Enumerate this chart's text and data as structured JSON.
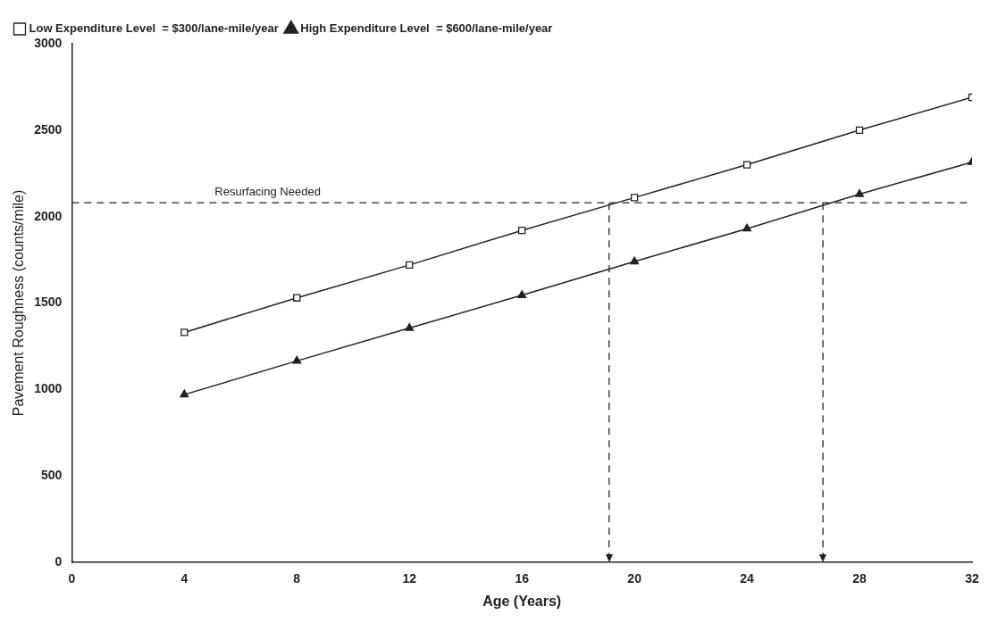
{
  "chart_data": {
    "type": "line",
    "xlabel": "Age (Years)",
    "ylabel": "Pavement Roughness (counts/mile)",
    "x": [
      4,
      8,
      12,
      16,
      20,
      24,
      28,
      32
    ],
    "series": [
      {
        "name": "Low Expenditure Level  = $300/lane-mile/year",
        "color": "#222222",
        "marker": "square",
        "values": [
          1330,
          1530,
          1720,
          1920,
          2110,
          2300,
          2500,
          2690
        ]
      },
      {
        "name": "High Expenditure Level  = $600/lane-mile/year",
        "color": "#222222",
        "marker": "triangle",
        "values": [
          970,
          1165,
          1355,
          1545,
          1740,
          1930,
          2130,
          2315
        ]
      }
    ],
    "xlim": [
      0,
      32
    ],
    "xticks": [
      0,
      4,
      8,
      12,
      16,
      20,
      24,
      28,
      32
    ],
    "ylim": [
      0,
      3000
    ],
    "yticks": [
      0,
      500,
      1000,
      1500,
      2000,
      2500,
      3000
    ],
    "ref_lines": [
      {
        "axis": "y",
        "value": 2080,
        "label": "Resurfacing Needed",
        "line_style": "dashed"
      },
      {
        "axis": "x",
        "value": 19.1,
        "label": null,
        "line_style": "dashed"
      },
      {
        "axis": "x",
        "value": 26.7,
        "label": null,
        "line_style": "dashed"
      }
    ],
    "grid": false,
    "legend": "top left",
    "line_style": "solid"
  }
}
